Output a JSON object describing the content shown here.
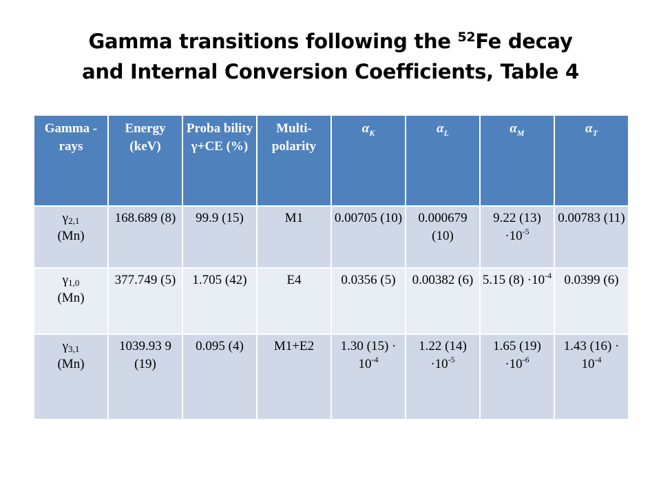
{
  "title": {
    "line1_pre": "Gamma transitions following the ",
    "line1_sup": "52",
    "line1_post": "Fe decay",
    "line2": "and Internal Conversion Coefficients, Table 4"
  },
  "table": {
    "headers": [
      {
        "main": "Gamma -rays"
      },
      {
        "main": "Energy (keV)"
      },
      {
        "main": "Proba bility γ+CE (%)"
      },
      {
        "main": "Multi- polarity"
      },
      {
        "main": "α",
        "sub": "K"
      },
      {
        "main": "α",
        "sub": "L"
      },
      {
        "main": "α",
        "sub": "M"
      },
      {
        "main": "α",
        "sub": "T"
      }
    ],
    "rows": [
      {
        "gamma": "γ",
        "gamma_sub": "2,1",
        "gamma_nuc": "(Mn)",
        "energy": "168.689 (8)",
        "probability": "99.9 (15)",
        "multipolarity": "M1",
        "ak": {
          "text": "0.00705 (10)"
        },
        "al": {
          "text": "0.000679 (10)"
        },
        "am": {
          "text": "9.22 (13) ·10",
          "exp": "-5"
        },
        "at": {
          "text": "0.00783 (11)"
        }
      },
      {
        "gamma": "γ",
        "gamma_sub": "1,0",
        "gamma_nuc": "(Mn)",
        "energy": "377.749 (5)",
        "probability": "1.705 (42)",
        "multipolarity": "E4",
        "ak": {
          "text": "0.0356 (5)"
        },
        "al": {
          "text": "0.00382 (6)"
        },
        "am": {
          "text": "5.15 (8) ·10",
          "exp": "-4"
        },
        "at": {
          "text": "0.0399 (6)"
        }
      },
      {
        "gamma": "γ",
        "gamma_sub": "3,1",
        "gamma_nuc": "(Mn)",
        "energy": "1039.93 9 (19)",
        "probability": "0.095 (4)",
        "multipolarity": "M1+E2",
        "ak": {
          "text": "1.30 (15) · 10",
          "exp": "-4"
        },
        "al": {
          "text": "1.22 (14) ·10",
          "exp": "-5"
        },
        "am": {
          "text": "1.65 (19) ·10",
          "exp": "-6"
        },
        "at": {
          "text": "1.43 (16) · 10",
          "exp": "-4"
        }
      }
    ]
  },
  "colors": {
    "header_bg": "#4f81bd",
    "row_odd_bg": "#d0d8e8",
    "row_even_bg": "#e9edf4"
  }
}
